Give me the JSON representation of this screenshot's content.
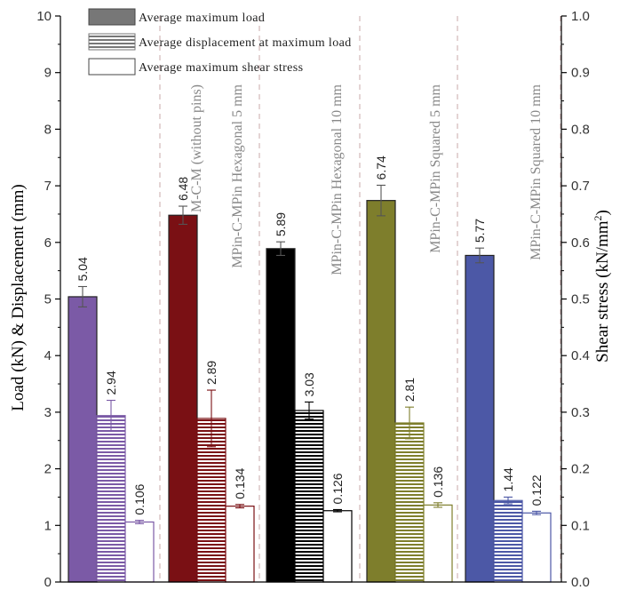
{
  "chart_data": {
    "type": "bar",
    "title": "",
    "ylabel_left": "Load (kN) & Displacement (mm)",
    "ylabel_right": "Shear stress (kN/mm",
    "ylabel_right_sup": "2",
    "ylabel_right_close": ")",
    "ylim_left": [
      0,
      10
    ],
    "ylim_right": [
      0.0,
      1.0
    ],
    "y_ticks_left": [
      "0",
      "1",
      "2",
      "3",
      "4",
      "5",
      "6",
      "7",
      "8",
      "9",
      "10"
    ],
    "y_ticks_right": [
      "0.0",
      "0.1",
      "0.2",
      "0.3",
      "0.4",
      "0.5",
      "0.6",
      "0.7",
      "0.8",
      "0.9",
      "1.0"
    ],
    "legend_position": "top-left",
    "legend": [
      {
        "label": "Average maximum load",
        "pattern": "solid-gray"
      },
      {
        "label": "Average displacement at maximum load",
        "pattern": "hatch"
      },
      {
        "label": "Average maximum shear stress",
        "pattern": "empty"
      }
    ],
    "categories": [
      "M-C-M (without pins)",
      "MPin-C-MPin Hexagonal 5 mm",
      "MPin-C-MPin Hexagonal 10 mm",
      "MPin-C-MPin Squared 5 mm",
      "MPin-C-MPin Squared 10 mm"
    ],
    "colors": [
      "#7b5aa6",
      "#7a1014",
      "#000000",
      "#7e7e2c",
      "#4c58a6"
    ],
    "series": [
      {
        "name": "Average maximum load",
        "axis": "left",
        "values": [
          5.04,
          6.48,
          5.89,
          6.74,
          5.77
        ],
        "labels": [
          "5.04",
          "6.48",
          "5.89",
          "6.74",
          "5.77"
        ],
        "errors": [
          0.18,
          0.16,
          0.12,
          0.27,
          0.13
        ]
      },
      {
        "name": "Average displacement at maximum load",
        "axis": "left",
        "values": [
          2.94,
          2.89,
          3.03,
          2.81,
          1.44
        ],
        "labels": [
          "2.94",
          "2.89",
          "3.03",
          "2.81",
          "1.44"
        ],
        "errors": [
          0.27,
          0.5,
          0.15,
          0.28,
          0.06
        ]
      },
      {
        "name": "Average maximum shear stress",
        "axis": "right",
        "values": [
          0.106,
          0.134,
          0.126,
          0.136,
          0.122
        ],
        "labels": [
          "0.106",
          "0.134",
          "0.126",
          "0.136",
          "0.122"
        ],
        "errors": [
          0.003,
          0.003,
          0.002,
          0.004,
          0.003
        ]
      }
    ]
  }
}
